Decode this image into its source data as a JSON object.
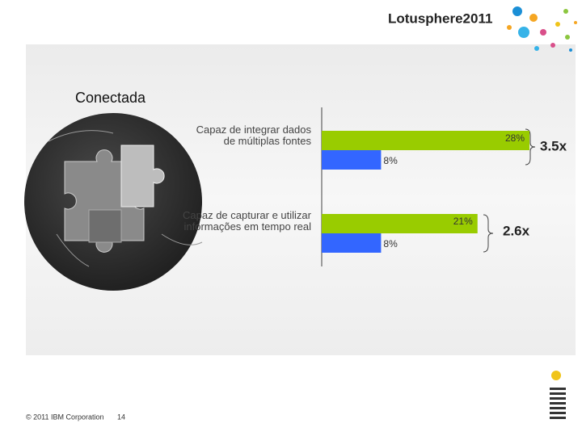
{
  "header": {
    "logo": "Lotusphere2011"
  },
  "chart_data": {
    "type": "bar",
    "orientation": "horizontal",
    "title": "Conectada",
    "categories": [
      "Capaz de integrar dados de múltiplas fontes",
      "Capaz de capturar e utilizar informações em tempo real"
    ],
    "series": [
      {
        "color": "#99cc00",
        "values": [
          28,
          21
        ],
        "value_labels": [
          "28%",
          "21%"
        ]
      },
      {
        "color": "#3366ff",
        "values": [
          8,
          8
        ],
        "value_labels": [
          "8%",
          "8%"
        ]
      }
    ],
    "xlim": [
      0,
      28
    ],
    "annotations": [
      "3.5x",
      "2.6x"
    ]
  },
  "footer": {
    "copyright": "© 2011 IBM Corporation",
    "page": "14"
  }
}
